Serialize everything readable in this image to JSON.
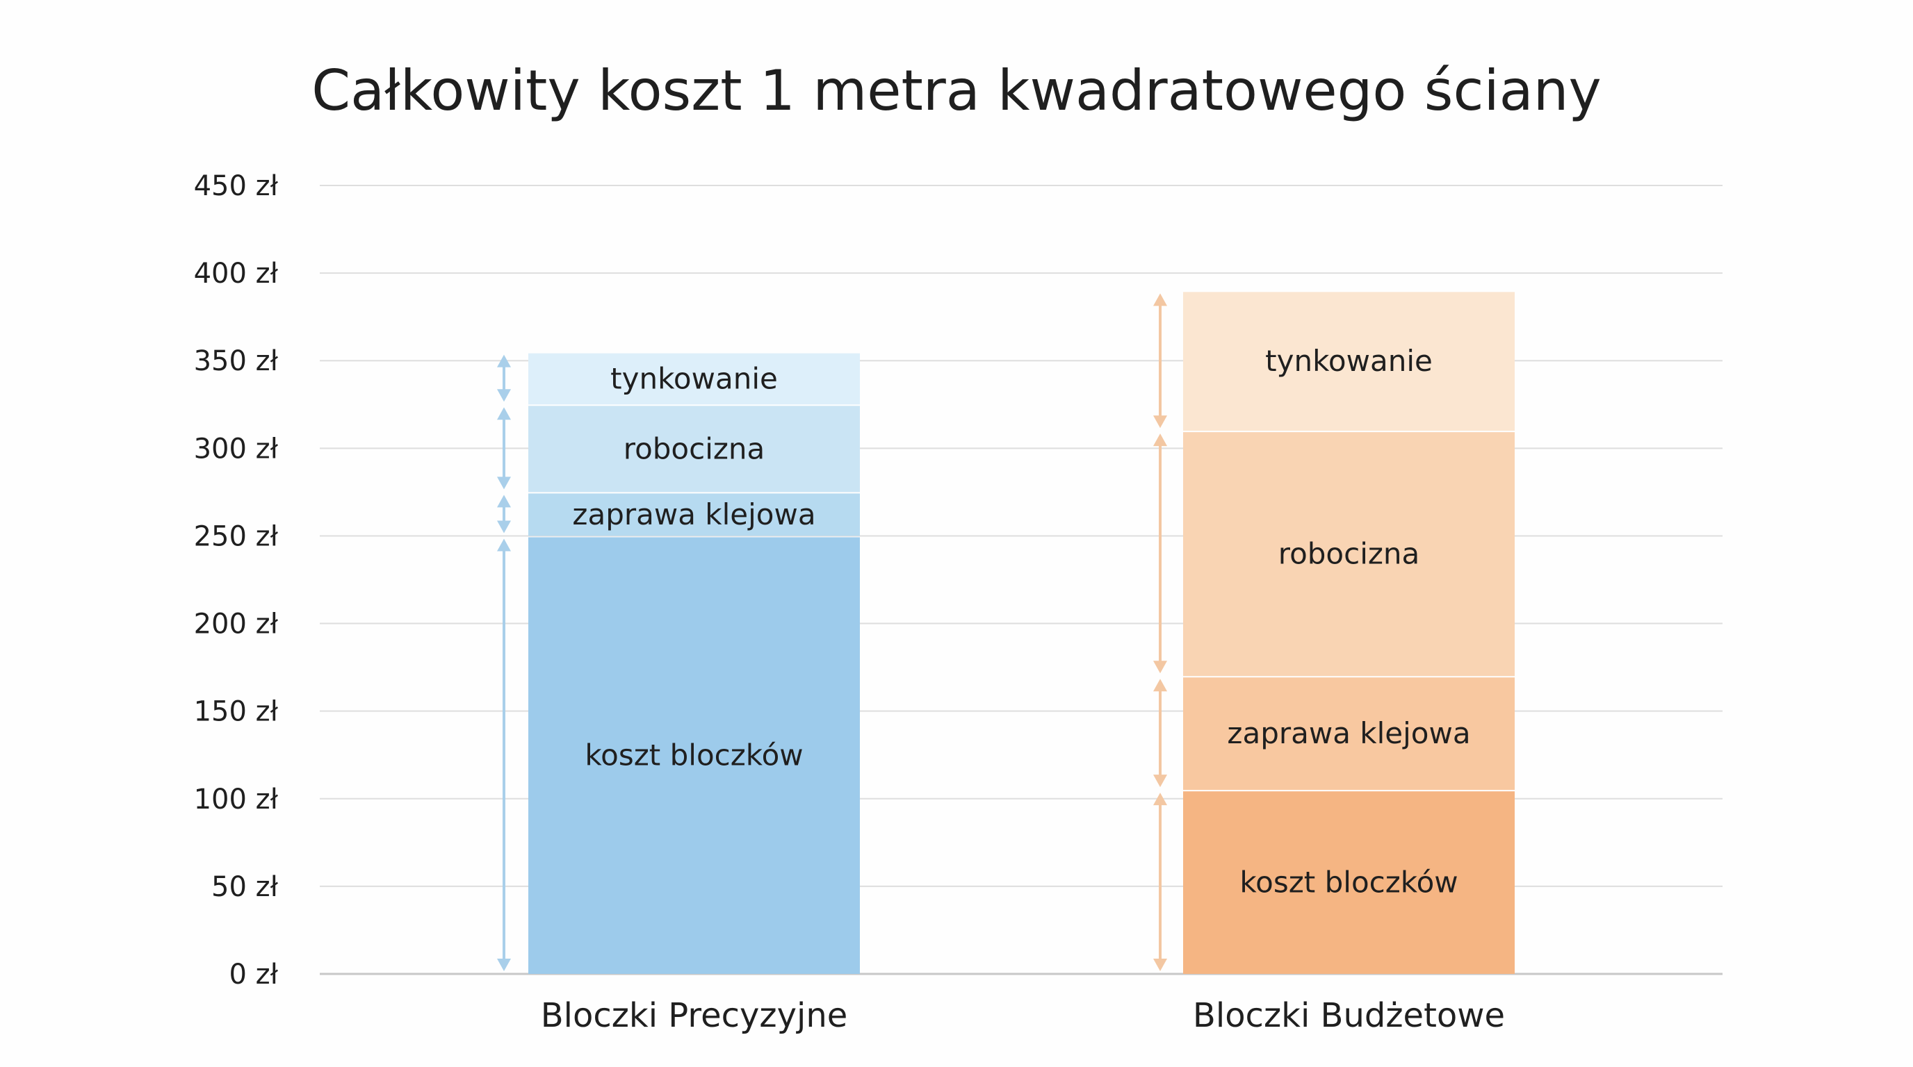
{
  "chart_data": {
    "type": "bar",
    "stacked": true,
    "title": "Całkowity koszt 1 metra kwadratowego ściany",
    "xlabel": "",
    "ylabel": "",
    "ylim": [
      0,
      450
    ],
    "yticks": [
      0,
      50,
      100,
      150,
      200,
      250,
      300,
      350,
      400,
      450
    ],
    "ytick_labels": [
      "0 zł",
      "50 zł",
      "100 zł",
      "150 zł",
      "200 zł",
      "250 zł",
      "300 zł",
      "350 zł",
      "400 zł",
      "450 zł"
    ],
    "grid": true,
    "categories": [
      "Bloczki Precyzyjne",
      "Bloczki Budżetowe"
    ],
    "series": [
      {
        "name": "koszt bloczków",
        "values": [
          250,
          105
        ],
        "colors": [
          "#9DCBEB",
          "#F5B583"
        ]
      },
      {
        "name": "zaprawa klejowa",
        "values": [
          25,
          65
        ],
        "colors": [
          "#B6DAF0",
          "#F8C8A0"
        ]
      },
      {
        "name": "robocizna",
        "values": [
          50,
          140
        ],
        "colors": [
          "#CAE4F4",
          "#F9D4B3"
        ]
      },
      {
        "name": "tynkowanie",
        "values": [
          30,
          80
        ],
        "colors": [
          "#DDEFFA",
          "#FBE6D1"
        ]
      }
    ],
    "arrow_colors": [
      "#A9CFEA",
      "#F3C7A2"
    ]
  }
}
